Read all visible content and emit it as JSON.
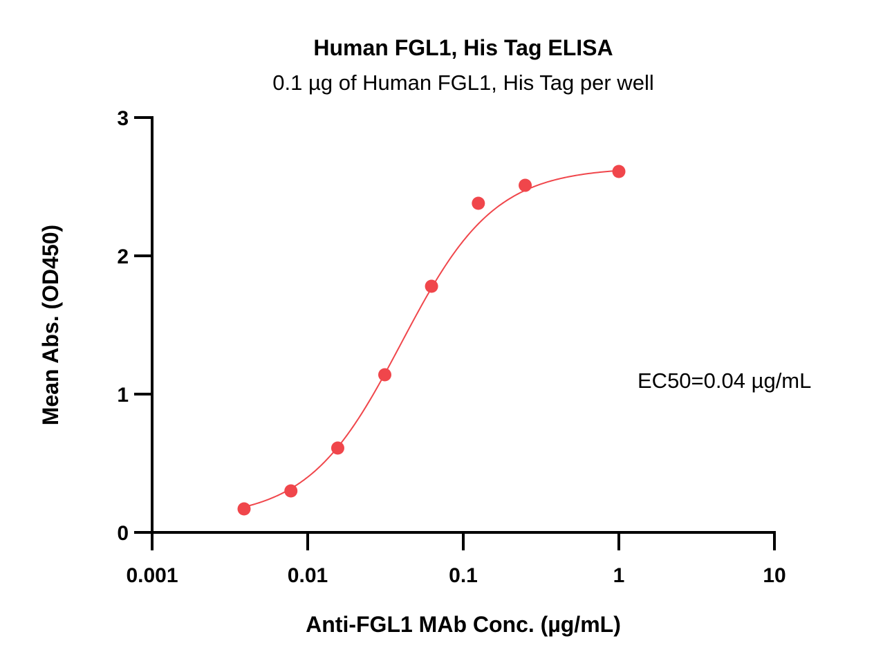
{
  "chart_data": {
    "type": "scatter",
    "title": "Human FGL1, His Tag ELISA",
    "subtitle": "0.1 µg of Human FGL1, His Tag per well",
    "xlabel": "Anti-FGL1 MAb Conc. (µg/mL)",
    "ylabel": "Mean Abs. (OD450)",
    "x_scale": "log",
    "xlim": [
      0.001,
      10
    ],
    "ylim": [
      0,
      3
    ],
    "x_ticks": [
      0.001,
      0.01,
      0.1,
      1,
      10
    ],
    "x_tick_labels": [
      "0.001",
      "0.01",
      "0.1",
      "1",
      "10"
    ],
    "y_ticks": [
      0,
      1,
      2,
      3
    ],
    "y_tick_labels": [
      "0",
      "1",
      "2",
      "3"
    ],
    "grid": false,
    "color": "#f0464b",
    "series": [
      {
        "x": [
          0.0039,
          0.0078,
          0.0156,
          0.0313,
          0.0625,
          0.125,
          0.25,
          1
        ],
        "y": [
          0.17,
          0.3,
          0.61,
          1.14,
          1.78,
          2.38,
          2.51,
          2.61
        ]
      }
    ],
    "fit": {
      "model": "4PL",
      "bottom": 0.1,
      "top": 2.64,
      "ec50": 0.04,
      "hill": 1.45
    },
    "annotation": "EC50=0.04 µg/mL"
  }
}
